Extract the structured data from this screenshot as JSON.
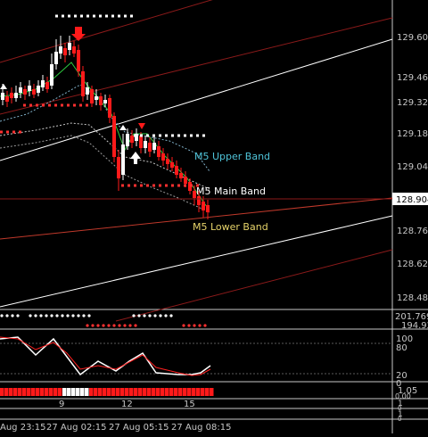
{
  "main_panel": {
    "price_axis": [
      "129.605",
      "129.465",
      "129.325",
      "129.185",
      "129.045",
      "128.905",
      "128.765",
      "128.625",
      "128.485"
    ],
    "current_price": "128.904",
    "bands": {
      "upper": {
        "label": "M5 Upper Band",
        "color": "#4fc3d8"
      },
      "main": {
        "label": "M5 Main Band",
        "color": "#ffffff"
      },
      "lower": {
        "label": "M5 Lower Band",
        "color": "#e6d36a"
      }
    }
  },
  "indicator_panel_1": {
    "labels": [
      "201.7699",
      "194.92"
    ]
  },
  "indicator_panel_2": {
    "labels": [
      "100",
      "80",
      "20",
      "0"
    ]
  },
  "indicator_panel_3": {
    "labels": [
      "1.05",
      "0.00"
    ]
  },
  "indicator_panel_4": {
    "labels": [
      "1",
      "0"
    ]
  },
  "indicator_panel_5": {
    "labels": [
      "1",
      "0"
    ]
  },
  "bar_markers": [
    "9",
    "12",
    "15"
  ],
  "time_axis": [
    "Aug 23:15",
    "27 Aug 02:15",
    "27 Aug 05:15",
    "27 Aug 08:15"
  ],
  "colors": {
    "bull": "#ffffff",
    "bear": "#ff1a1a",
    "axis": "#c8c8c8",
    "grid_red": "#8b1a1a",
    "dots_red": "#ff3030"
  }
}
